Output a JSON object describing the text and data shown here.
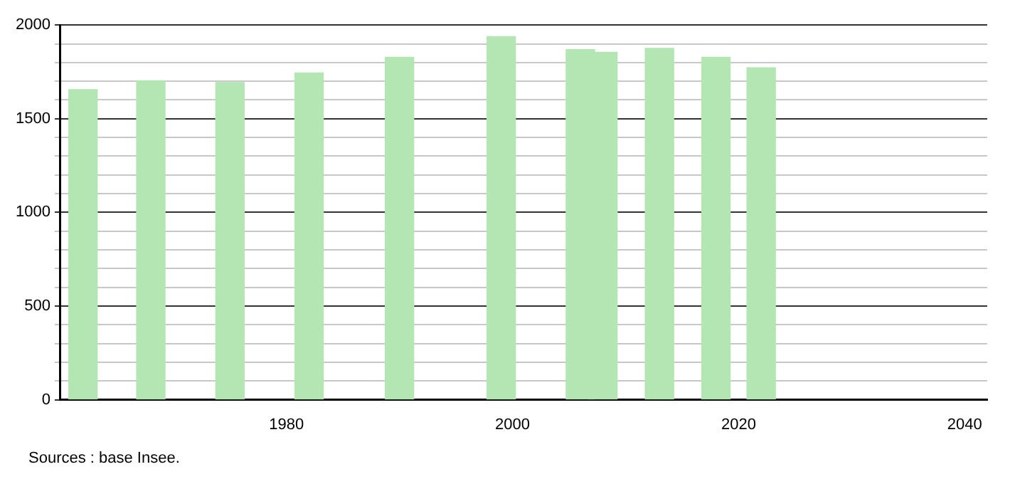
{
  "chart_data": {
    "type": "bar",
    "x": [
      1962,
      1968,
      1975,
      1982,
      1990,
      1999,
      2006,
      2008,
      2013,
      2018,
      2022
    ],
    "values": [
      1655,
      1703,
      1693,
      1745,
      1828,
      1938,
      1869,
      1855,
      1876,
      1828,
      1772
    ],
    "color": "#b3e6b3",
    "xlim": [
      1960,
      2042
    ],
    "xticks": [
      1980,
      2000,
      2020,
      2040
    ],
    "ylim": [
      0,
      2000
    ],
    "yticks": [
      0,
      {
        "value": 100,
        "label": null
      },
      {
        "value": 200,
        "label": null
      },
      {
        "value": 300,
        "label": null
      },
      {
        "value": 400,
        "label": null
      },
      500,
      {
        "value": 600,
        "label": null
      },
      {
        "value": 700,
        "label": null
      },
      {
        "value": 800,
        "label": null
      },
      {
        "value": 900,
        "label": null
      },
      1000,
      {
        "value": 1100,
        "label": null
      },
      {
        "value": 1200,
        "label": null
      },
      {
        "value": 1300,
        "label": null
      },
      {
        "value": 1400,
        "label": null
      },
      1500,
      {
        "value": 1600,
        "label": null
      },
      {
        "value": 1700,
        "label": null
      },
      {
        "value": 1800,
        "label": null
      },
      {
        "value": 1900,
        "label": null
      },
      2000
    ],
    "grid": "y",
    "annotations": [
      "Sources : base Insee."
    ]
  }
}
